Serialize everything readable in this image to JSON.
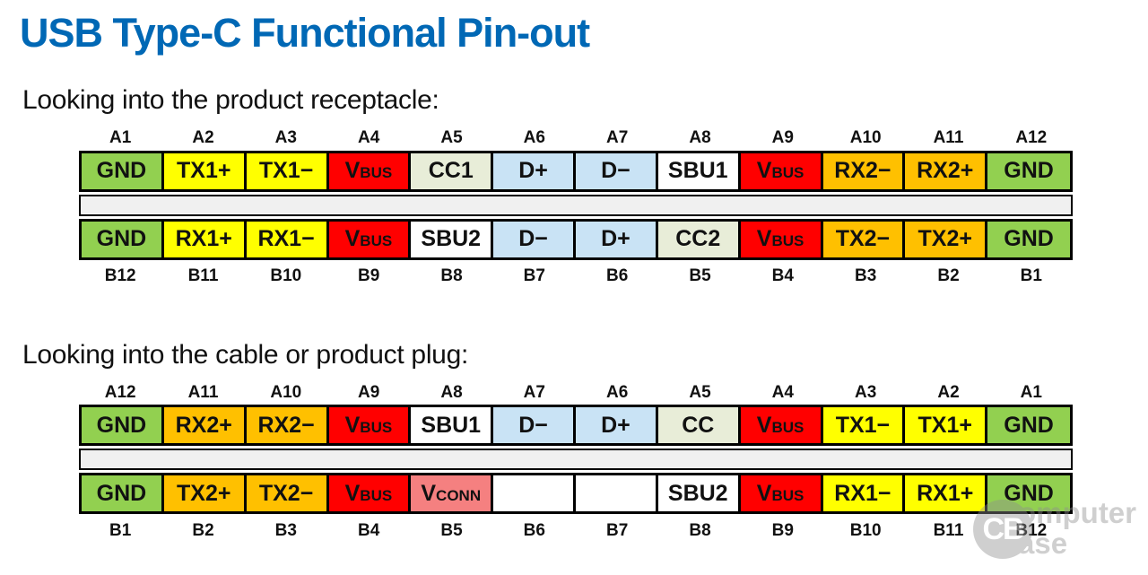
{
  "title": "USB Type-C Functional Pin-out",
  "colors": {
    "green": "#92D050",
    "yellow": "#FFFF00",
    "orange": "#FFC000",
    "red": "#FF0000",
    "blue": "#C9E3F5",
    "cc": "#E8EDD8",
    "white": "#FFFFFF",
    "pink": "#F58080",
    "band": "#F0F0F0",
    "title_blue": "#0068B5"
  },
  "watermark": {
    "monogram": "CB",
    "line1": "omputer",
    "line2": "ase"
  },
  "tables": [
    {
      "heading": "Looking into the product receptacle:",
      "top_labels": [
        "A1",
        "A2",
        "A3",
        "A4",
        "A5",
        "A6",
        "A7",
        "A8",
        "A9",
        "A10",
        "A11",
        "A12"
      ],
      "top_cells": [
        {
          "main": "GND",
          "small": "",
          "color": "green"
        },
        {
          "main": "TX1+",
          "small": "",
          "color": "yellow"
        },
        {
          "main": "TX1−",
          "small": "",
          "color": "yellow"
        },
        {
          "main": "V",
          "small": "BUS",
          "color": "red"
        },
        {
          "main": "CC1",
          "small": "",
          "color": "cc"
        },
        {
          "main": "D+",
          "small": "",
          "color": "blue"
        },
        {
          "main": "D−",
          "small": "",
          "color": "blue"
        },
        {
          "main": "SBU1",
          "small": "",
          "color": "white"
        },
        {
          "main": "V",
          "small": "BUS",
          "color": "red"
        },
        {
          "main": "RX2−",
          "small": "",
          "color": "orange"
        },
        {
          "main": "RX2+",
          "small": "",
          "color": "orange"
        },
        {
          "main": "GND",
          "small": "",
          "color": "green"
        }
      ],
      "bottom_cells": [
        {
          "main": "GND",
          "small": "",
          "color": "green"
        },
        {
          "main": "RX1+",
          "small": "",
          "color": "yellow"
        },
        {
          "main": "RX1−",
          "small": "",
          "color": "yellow"
        },
        {
          "main": "V",
          "small": "BUS",
          "color": "red"
        },
        {
          "main": "SBU2",
          "small": "",
          "color": "white"
        },
        {
          "main": "D−",
          "small": "",
          "color": "blue"
        },
        {
          "main": "D+",
          "small": "",
          "color": "blue"
        },
        {
          "main": "CC2",
          "small": "",
          "color": "cc"
        },
        {
          "main": "V",
          "small": "BUS",
          "color": "red"
        },
        {
          "main": "TX2−",
          "small": "",
          "color": "orange"
        },
        {
          "main": "TX2+",
          "small": "",
          "color": "orange"
        },
        {
          "main": "GND",
          "small": "",
          "color": "green"
        }
      ],
      "bottom_labels": [
        "B12",
        "B11",
        "B10",
        "B9",
        "B8",
        "B7",
        "B6",
        "B5",
        "B4",
        "B3",
        "B2",
        "B1"
      ]
    },
    {
      "heading": "Looking into the cable or product plug:",
      "top_labels": [
        "A12",
        "A11",
        "A10",
        "A9",
        "A8",
        "A7",
        "A6",
        "A5",
        "A4",
        "A3",
        "A2",
        "A1"
      ],
      "top_cells": [
        {
          "main": "GND",
          "small": "",
          "color": "green"
        },
        {
          "main": "RX2+",
          "small": "",
          "color": "orange"
        },
        {
          "main": "RX2−",
          "small": "",
          "color": "orange"
        },
        {
          "main": "V",
          "small": "BUS",
          "color": "red"
        },
        {
          "main": "SBU1",
          "small": "",
          "color": "white"
        },
        {
          "main": "D−",
          "small": "",
          "color": "blue"
        },
        {
          "main": "D+",
          "small": "",
          "color": "blue"
        },
        {
          "main": "CC",
          "small": "",
          "color": "cc"
        },
        {
          "main": "V",
          "small": "BUS",
          "color": "red"
        },
        {
          "main": "TX1−",
          "small": "",
          "color": "yellow"
        },
        {
          "main": "TX1+",
          "small": "",
          "color": "yellow"
        },
        {
          "main": "GND",
          "small": "",
          "color": "green"
        }
      ],
      "bottom_cells": [
        {
          "main": "GND",
          "small": "",
          "color": "green"
        },
        {
          "main": "TX2+",
          "small": "",
          "color": "orange"
        },
        {
          "main": "TX2−",
          "small": "",
          "color": "orange"
        },
        {
          "main": "V",
          "small": "BUS",
          "color": "red"
        },
        {
          "main": "V",
          "small": "CONN",
          "color": "pink"
        },
        {
          "main": "",
          "small": "",
          "color": "white"
        },
        {
          "main": "",
          "small": "",
          "color": "white"
        },
        {
          "main": "SBU2",
          "small": "",
          "color": "white"
        },
        {
          "main": "V",
          "small": "BUS",
          "color": "red"
        },
        {
          "main": "RX1−",
          "small": "",
          "color": "yellow"
        },
        {
          "main": "RX1+",
          "small": "",
          "color": "yellow"
        },
        {
          "main": "GND",
          "small": "",
          "color": "green"
        }
      ],
      "bottom_labels": [
        "B1",
        "B2",
        "B3",
        "B4",
        "B5",
        "B6",
        "B7",
        "B8",
        "B9",
        "B10",
        "B11",
        "B12"
      ]
    }
  ]
}
